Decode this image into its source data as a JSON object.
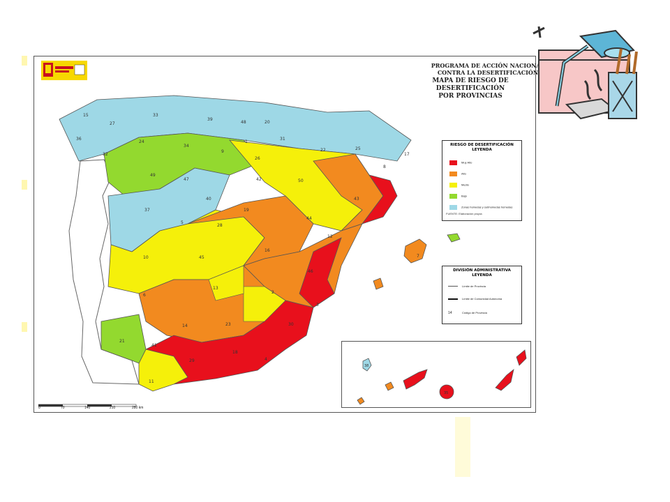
{
  "header": {
    "line1": "PROGRAMA DE ACCIÓN NACIONAL",
    "line2": "CONTRA LA DESERTIFICACIÓN",
    "line3": "MAPA DE RIESGO DE DESERTIFICACIÓN",
    "line4": "POR PROVINCIAS"
  },
  "legend_risk": {
    "title1": "RIESGO DE DESERTIFICACIÓN",
    "title2": "LEYENDA",
    "items": [
      {
        "label": "Muy Alto",
        "color": "#e8101c"
      },
      {
        "label": "Alto",
        "color": "#f28a1f"
      },
      {
        "label": "Medio",
        "color": "#f5f00a"
      },
      {
        "label": "Bajo",
        "color": "#93d92f"
      },
      {
        "label": "Zonas húmedas y subhúmedas húmedas",
        "color": "#9ed8e6"
      }
    ],
    "source": "FUENTE: Elaboración propia"
  },
  "legend_admin": {
    "title1": "DIVISIÓN ADMINISTRATIVA",
    "title2": "LEYENDA",
    "items": [
      {
        "symbol": "line",
        "label": "Límite de Provincia"
      },
      {
        "symbol": "thick-line",
        "label": "Límite de Comunidad Autónoma"
      },
      {
        "symbol": "14",
        "label": "Código de Provincia"
      }
    ]
  },
  "scale": {
    "ticks": [
      "0",
      "70",
      "140",
      "210",
      "280 km"
    ]
  },
  "province_codes": {
    "c15": "15",
    "c27": "27",
    "c33": "33",
    "c39": "39",
    "c48": "48",
    "c20": "20",
    "c31": "31",
    "c22": "22",
    "c25": "25",
    "c17": "17",
    "c36": "36",
    "c32": "32",
    "c24": "24",
    "c34": "34",
    "c9": "9",
    "c1": "1",
    "c26": "26",
    "c50": "50",
    "c8": "8",
    "c43": "43",
    "c49": "49",
    "c47": "47",
    "c42": "42",
    "c37": "37",
    "c40": "40",
    "c5": "5",
    "c19": "19",
    "c44": "44",
    "c28": "28",
    "c12": "12",
    "c16": "16",
    "c46": "46",
    "c10": "10",
    "c45": "45",
    "c6": "6",
    "c13": "13",
    "c2": "2",
    "c3": "3",
    "c14": "14",
    "c23": "23",
    "c30": "30",
    "c21": "21",
    "c41": "41",
    "c18": "18",
    "c4": "4",
    "c29": "29",
    "c11": "11",
    "c7": "7",
    "c38": "38",
    "c35": "35"
  }
}
